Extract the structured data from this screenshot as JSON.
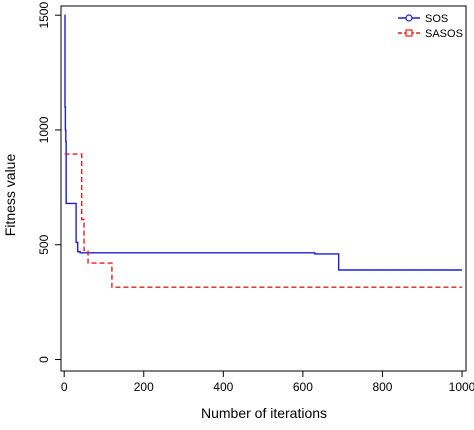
{
  "chart_data": {
    "type": "line",
    "title": "",
    "xlabel": "Number of iterations",
    "ylabel": "Fitness value",
    "xlim": [
      -8,
      1010
    ],
    "ylim": [
      -50,
      1540
    ],
    "xticks": [
      0,
      200,
      400,
      600,
      800,
      1000
    ],
    "yticks": [
      0,
      500,
      1000,
      1500
    ],
    "grid": false,
    "legend_position": "top-right",
    "series": [
      {
        "name": "SOS",
        "color": "#1f1fd0",
        "line_style": "solid",
        "marker": "circle",
        "step": true,
        "x": [
          1,
          2,
          3,
          4,
          5,
          10,
          30,
          34,
          40,
          630,
          690,
          1000
        ],
        "y": [
          1500,
          1100,
          1000,
          950,
          680,
          680,
          510,
          470,
          465,
          460,
          390,
          390
        ]
      },
      {
        "name": "SASOS",
        "color": "#e3201b",
        "line_style": "dashed",
        "marker": "square",
        "step": true,
        "x": [
          1,
          40,
          44,
          50,
          60,
          110,
          120,
          1000
        ],
        "y": [
          895,
          895,
          610,
          475,
          420,
          420,
          315,
          315
        ]
      }
    ]
  }
}
